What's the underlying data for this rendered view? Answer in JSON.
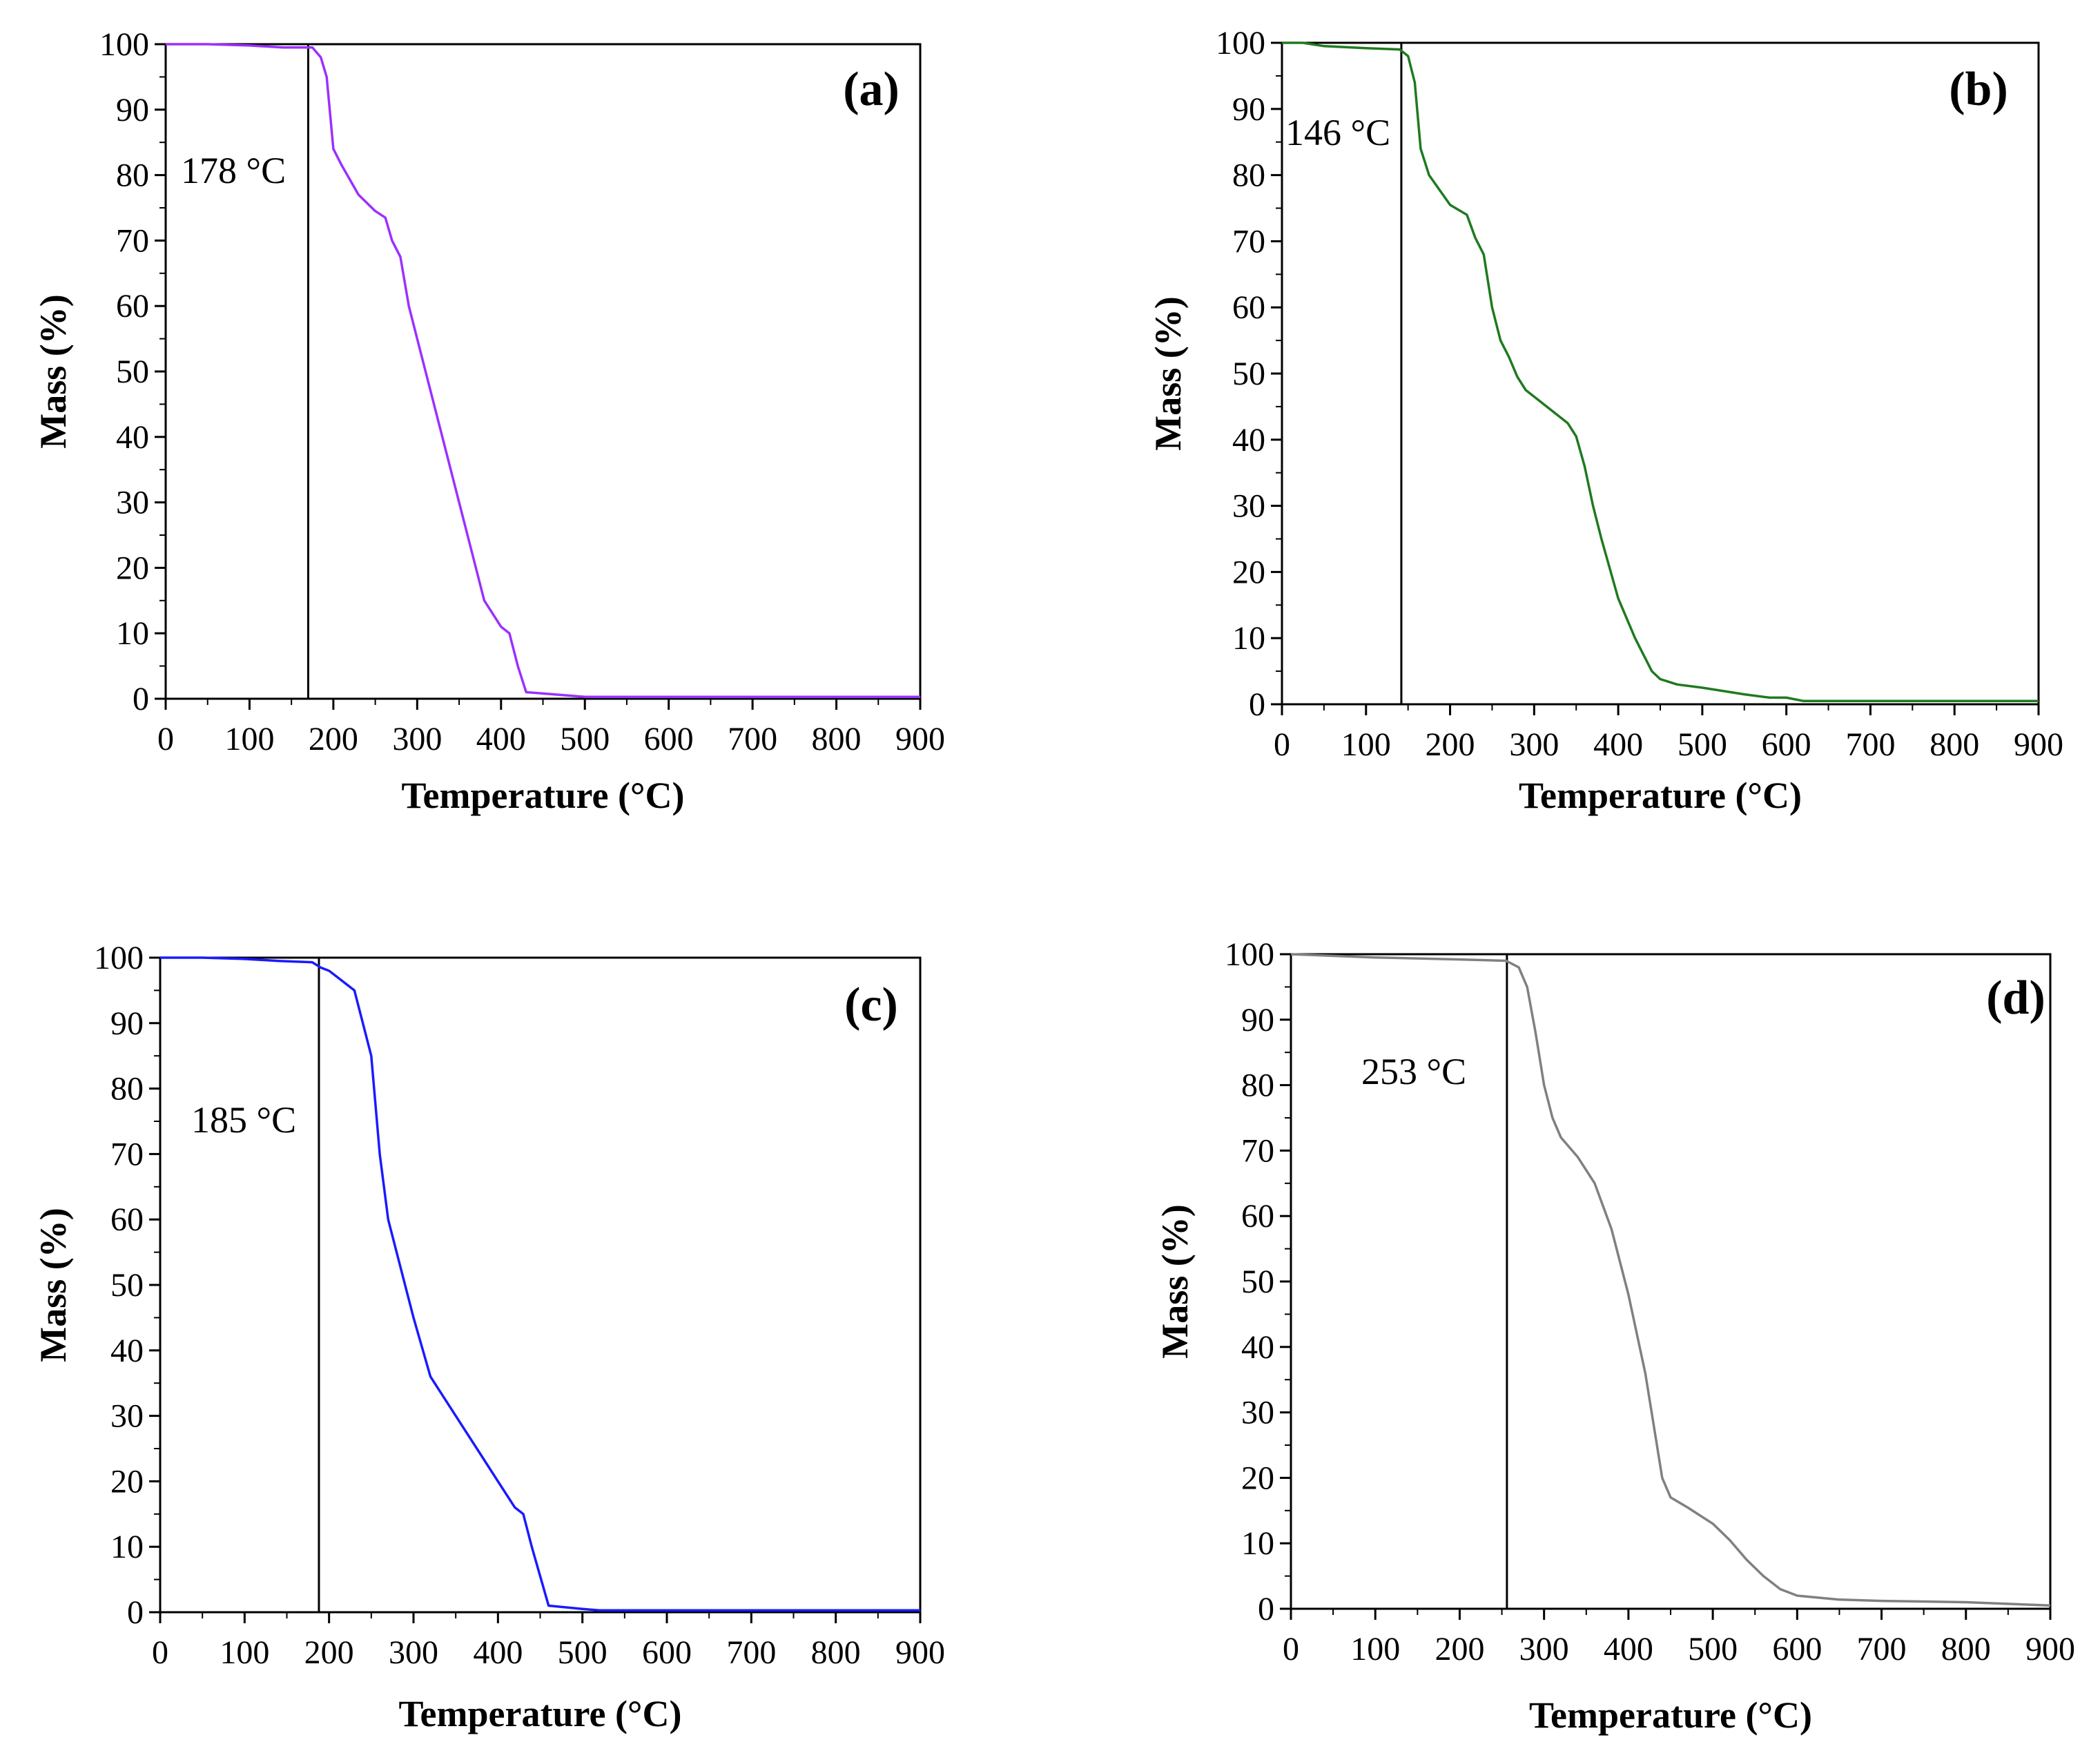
{
  "chart_data": [
    {
      "type": "line",
      "panel": "(a)",
      "xlabel": "Temperature (°C)",
      "ylabel": "Mass (%)",
      "xlim": [
        0,
        900
      ],
      "ylim": [
        0,
        100
      ],
      "x_ticks": [
        0,
        100,
        200,
        300,
        400,
        500,
        600,
        700,
        800,
        900
      ],
      "y_ticks": [
        0,
        10,
        20,
        30,
        40,
        50,
        60,
        70,
        80,
        90,
        100
      ],
      "grid": false,
      "annotation": {
        "text": "178 °C",
        "x": 170
      },
      "series": [
        {
          "color": "#9b30ff",
          "x": [
            0,
            50,
            100,
            140,
            175,
            185,
            192,
            200,
            210,
            230,
            250,
            262,
            270,
            280,
            290,
            300,
            320,
            340,
            360,
            380,
            400,
            410,
            420,
            430,
            450,
            500,
            600,
            700,
            800,
            900
          ],
          "y": [
            100,
            100,
            99.8,
            99.5,
            99.5,
            98,
            95,
            84,
            81.5,
            77,
            74.5,
            73.5,
            70,
            67.5,
            60,
            55,
            45,
            35,
            25,
            15,
            11,
            10,
            5,
            1,
            0.8,
            0.3,
            0.3,
            0.3,
            0.3,
            0.3
          ]
        }
      ]
    },
    {
      "type": "line",
      "panel": "(b)",
      "xlabel": "Temperature (°C)",
      "ylabel": "Mass (%)",
      "xlim": [
        0,
        900
      ],
      "ylim": [
        0,
        100
      ],
      "x_ticks": [
        0,
        100,
        200,
        300,
        400,
        500,
        600,
        700,
        800,
        900
      ],
      "y_ticks": [
        0,
        10,
        20,
        30,
        40,
        50,
        60,
        70,
        80,
        90,
        100
      ],
      "grid": false,
      "annotation": {
        "text": "146 °C",
        "x": 142
      },
      "series": [
        {
          "color": "#1f7a1f",
          "x": [
            0,
            25,
            50,
            100,
            140,
            150,
            158,
            165,
            175,
            200,
            220,
            230,
            240,
            250,
            260,
            270,
            280,
            290,
            300,
            320,
            340,
            350,
            360,
            370,
            380,
            400,
            420,
            430,
            440,
            450,
            470,
            500,
            550,
            580,
            600,
            620,
            700,
            800,
            900
          ],
          "y": [
            100,
            100,
            99.5,
            99.2,
            99,
            98,
            94,
            84,
            80,
            75.5,
            74,
            70.5,
            68,
            60,
            55,
            52.5,
            49.5,
            47.5,
            46.5,
            44.5,
            42.5,
            40.5,
            36,
            30,
            25,
            16,
            10,
            7.5,
            5,
            3.8,
            3,
            2.5,
            1.5,
            1,
            1,
            0.5,
            0.5,
            0.5,
            0.5
          ]
        }
      ]
    },
    {
      "type": "line",
      "panel": "(c)",
      "xlabel": "Temperature (°C)",
      "ylabel": "Mass (%)",
      "xlim": [
        0,
        900
      ],
      "ylim": [
        0,
        100
      ],
      "x_ticks": [
        0,
        100,
        200,
        300,
        400,
        500,
        600,
        700,
        800,
        900
      ],
      "y_ticks": [
        0,
        10,
        20,
        30,
        40,
        50,
        60,
        70,
        80,
        90,
        100
      ],
      "grid": false,
      "annotation": {
        "text": "185 °C",
        "x": 188
      },
      "series": [
        {
          "color": "#1a1aff",
          "x": [
            0,
            50,
            100,
            140,
            180,
            190,
            200,
            210,
            230,
            250,
            260,
            270,
            280,
            300,
            320,
            340,
            360,
            380,
            400,
            420,
            430,
            440,
            460,
            500,
            520,
            600,
            700,
            800,
            900
          ],
          "y": [
            100,
            100,
            99.8,
            99.5,
            99.3,
            98.5,
            98,
            97,
            95,
            85,
            70,
            60,
            55,
            45,
            36,
            32,
            28,
            24,
            20,
            16,
            15,
            10,
            1,
            0.5,
            0.3,
            0.3,
            0.3,
            0.3,
            0.3
          ]
        }
      ]
    },
    {
      "type": "line",
      "panel": "(d)",
      "xlabel": "Temperature (°C)",
      "ylabel": "Mass (%)",
      "xlim": [
        0,
        900
      ],
      "ylim": [
        0,
        100
      ],
      "x_ticks": [
        0,
        100,
        200,
        300,
        400,
        500,
        600,
        700,
        800,
        900
      ],
      "y_ticks": [
        0,
        10,
        20,
        30,
        40,
        50,
        60,
        70,
        80,
        90,
        100
      ],
      "grid": false,
      "annotation": {
        "text": "253 °C",
        "x": 256
      },
      "series": [
        {
          "color": "#808080",
          "x": [
            0,
            100,
            200,
            255,
            270,
            280,
            290,
            300,
            310,
            320,
            340,
            360,
            380,
            400,
            420,
            430,
            440,
            450,
            470,
            500,
            520,
            540,
            560,
            580,
            600,
            650,
            700,
            800,
            900
          ],
          "y": [
            100,
            99.5,
            99.2,
            99,
            98,
            95,
            88,
            80,
            75,
            72,
            69,
            65,
            58,
            48,
            36,
            28,
            20,
            17,
            15.5,
            13,
            10.5,
            7.5,
            5,
            3,
            2,
            1.4,
            1.2,
            1,
            0.5
          ]
        }
      ]
    }
  ]
}
